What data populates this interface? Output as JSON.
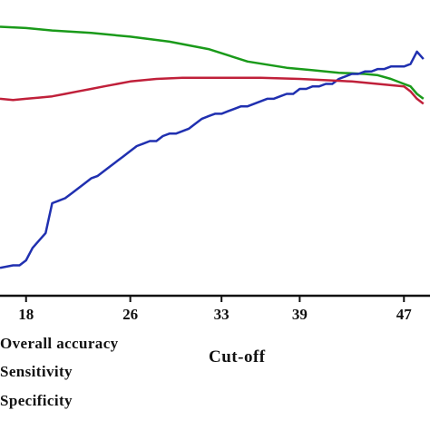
{
  "chart_data": {
    "type": "line",
    "xlabel": "Cut-off",
    "ylabel": "",
    "x_ticks": [
      "18",
      "26",
      "33",
      "39",
      "47"
    ],
    "xlim": [
      16,
      49
    ],
    "ylim": [
      0,
      100
    ],
    "grid": false,
    "legend_placement": "bottom-left",
    "series": [
      {
        "name": "Overall accuracy",
        "color": "#1a9a1a",
        "x": [
          16,
          18,
          20,
          23,
          26,
          29,
          32,
          35,
          38,
          40,
          42,
          44,
          45,
          46,
          47,
          47.5,
          48,
          48.5
        ],
        "y": [
          98,
          97.5,
          96.5,
          95.5,
          94,
          92,
          89,
          84,
          81.5,
          80.5,
          79.5,
          79,
          78.5,
          77,
          75,
          74,
          71,
          69
        ]
      },
      {
        "name": "Sensitivity",
        "color": "#2030b0",
        "x": [
          16,
          17,
          17.5,
          18,
          18.5,
          19,
          19.5,
          20,
          20.5,
          21,
          21.5,
          22,
          22.5,
          23,
          23.5,
          24,
          24.5,
          25,
          25.5,
          26,
          26.5,
          27,
          27.5,
          28,
          28.5,
          29,
          29.5,
          30,
          30.5,
          31,
          31.5,
          32,
          32.5,
          33,
          33.5,
          34,
          34.5,
          35,
          35.5,
          36,
          36.5,
          37,
          37.5,
          38,
          38.5,
          39,
          39.5,
          40,
          40.5,
          41,
          41.5,
          42,
          42.5,
          43,
          43.5,
          44,
          44.5,
          45,
          45.5,
          46,
          46.5,
          47,
          47.5,
          48,
          48.5
        ],
        "y": [
          1,
          2,
          2,
          4,
          9,
          12,
          15,
          27,
          28,
          29,
          31,
          33,
          35,
          37,
          38,
          40,
          42,
          44,
          46,
          48,
          50,
          51,
          52,
          52,
          54,
          55,
          55,
          56,
          57,
          59,
          61,
          62,
          63,
          63,
          64,
          65,
          66,
          66,
          67,
          68,
          69,
          69,
          70,
          71,
          71,
          73,
          73,
          74,
          74,
          75,
          75,
          77,
          78,
          79,
          79,
          80,
          80,
          81,
          81,
          82,
          82,
          82,
          83,
          88,
          85
        ]
      },
      {
        "name": "Specificity",
        "color": "#c0203a",
        "x": [
          16,
          17,
          18,
          19,
          20,
          21,
          22,
          23,
          24,
          25,
          26,
          27,
          28,
          30,
          33,
          36,
          39,
          41,
          43,
          44,
          45,
          46,
          47,
          47.5,
          48,
          48.5
        ],
        "y": [
          69,
          68.5,
          69,
          69.5,
          70,
          71,
          72,
          73,
          74,
          75,
          76,
          76.5,
          77,
          77.5,
          77.5,
          77.5,
          77,
          76.5,
          76,
          75.5,
          75,
          74.5,
          74,
          72,
          69,
          67
        ]
      }
    ]
  },
  "legend": {
    "items": [
      {
        "label": "Overall accuracy",
        "color": "#1a9a1a"
      },
      {
        "label": "Sensitivity",
        "color": "#2030b0"
      },
      {
        "label": "Specificity",
        "color": "#c0203a"
      }
    ]
  }
}
